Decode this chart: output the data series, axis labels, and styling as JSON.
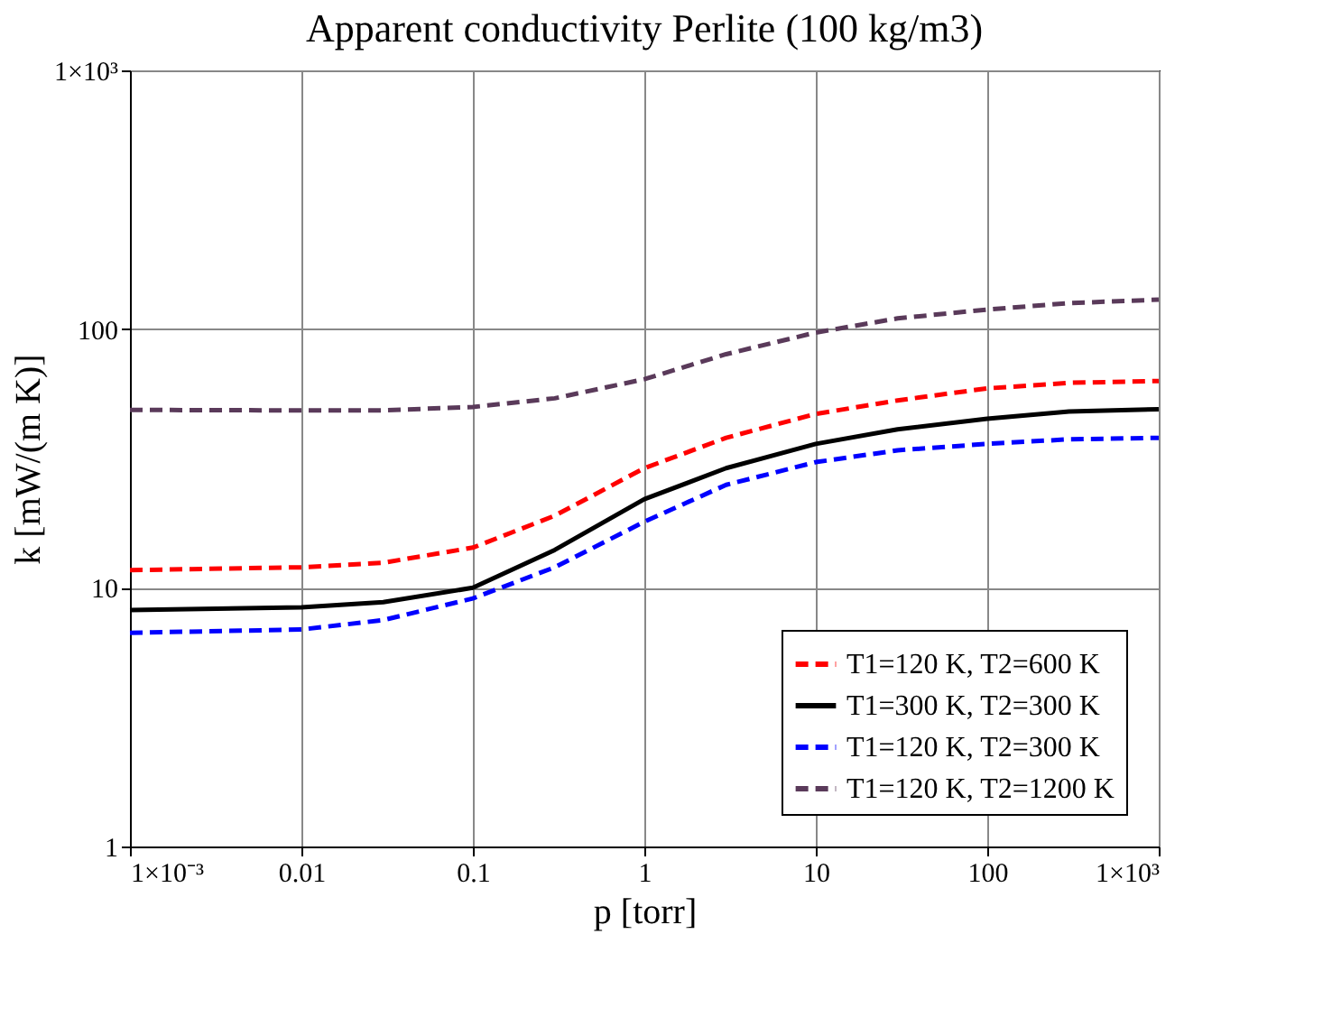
{
  "chart_data": {
    "type": "line",
    "title": "Apparent conductivity Perlite (100 kg/m3)",
    "xlabel": "p [torr]",
    "ylabel": "k [mW/(m K)]",
    "x": [
      0.001,
      0.01,
      0.03,
      0.1,
      0.3,
      1,
      3,
      10,
      30,
      100,
      300,
      1000
    ],
    "series": [
      {
        "name": "T1=120 K, T2=600 K",
        "color": "#ff0000",
        "line_style": "dashed",
        "values": [
          11.7,
          12,
          12.5,
          14.3,
          19,
          29,
          38,
          47,
          53,
          59,
          62,
          63
        ]
      },
      {
        "name": "T1=300 K, T2=300 K",
        "color": "#000000",
        "line_style": "solid",
        "values": [
          8.2,
          8.4,
          8.8,
          10,
          14,
          22,
          29,
          36,
          41,
          45,
          48,
          49
        ]
      },
      {
        "name": "T1=120 K, T2=300 K",
        "color": "#0000ff",
        "line_style": "dashed",
        "values": [
          6.7,
          6.9,
          7.5,
          9.1,
          12,
          18,
          25,
          30.6,
          34,
          36,
          37.5,
          38
        ]
      },
      {
        "name": "T1=120 K, T2=1200 K",
        "color": "#5a3a5a",
        "line_style": "dashed",
        "values": [
          48.7,
          48.5,
          48.5,
          50,
          54,
          64,
          80,
          97,
          110,
          119,
          126,
          130
        ]
      }
    ],
    "log": "xy",
    "xlim": [
      0.001,
      1000
    ],
    "ylim": [
      1,
      1000
    ],
    "xticks": [
      {
        "value": 0.001,
        "label": "1×10⁻³"
      },
      0.01,
      0.1,
      1,
      10,
      100,
      {
        "value": 1000,
        "label": "1×10³"
      }
    ],
    "yticks": [
      1,
      10,
      100,
      {
        "value": 1000,
        "label": "1×10³"
      }
    ],
    "grid": true,
    "legend": "bottom right",
    "marker": "none"
  }
}
